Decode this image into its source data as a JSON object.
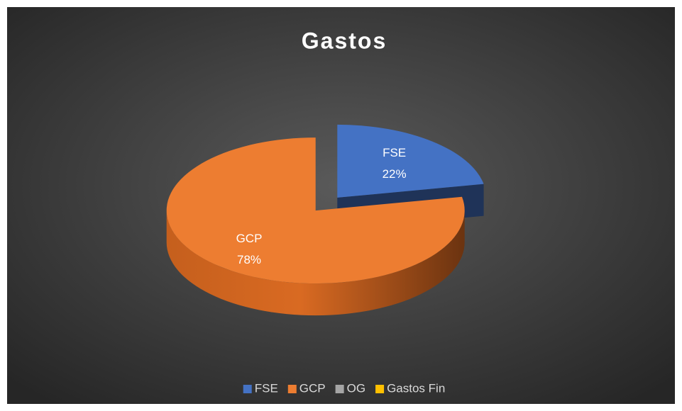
{
  "chart_data": {
    "type": "pie",
    "title": "Gastos",
    "categories": [
      "FSE",
      "GCP",
      "OG",
      "Gastos Fin"
    ],
    "values": [
      22,
      78,
      0,
      0
    ],
    "value_labels": [
      "22%",
      "78%",
      null,
      null
    ],
    "colors": [
      "#4472c4",
      "#ed7d31",
      "#a5a5a5",
      "#ffc000"
    ],
    "legend": "bottom"
  }
}
